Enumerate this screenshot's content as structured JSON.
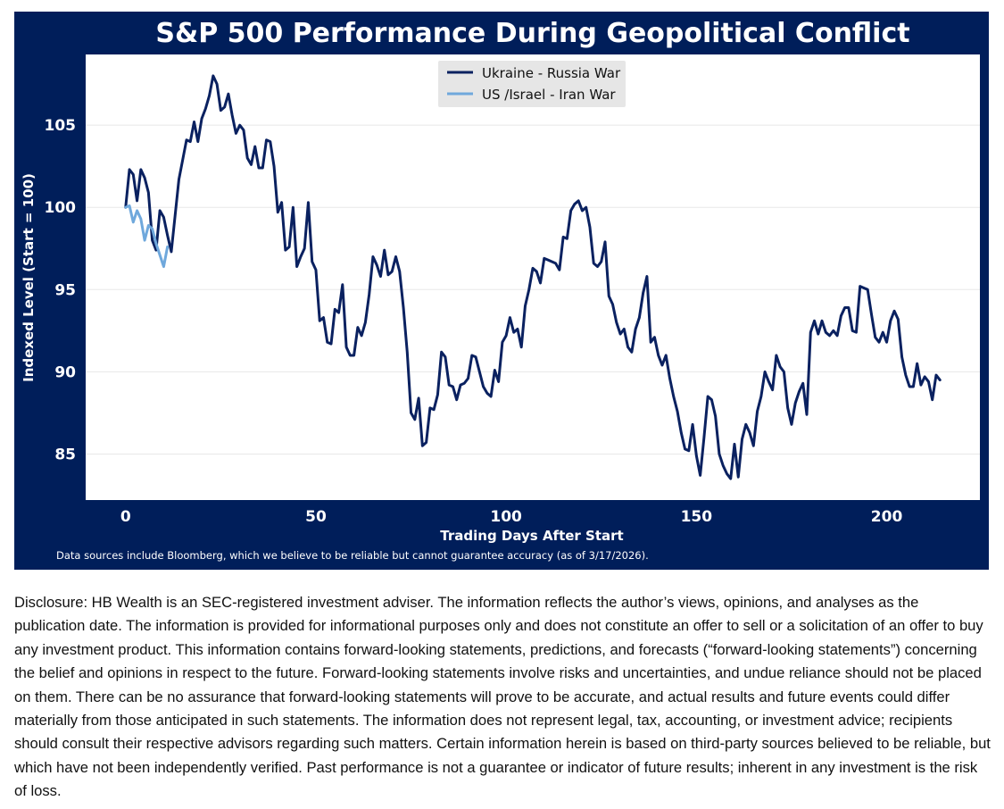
{
  "colors": {
    "panel_bg": "#001e5a",
    "plot_bg": "#ffffff",
    "series_dark": "#0a2160",
    "series_light": "#6fa8dc",
    "text_light": "#ffffff",
    "grid": "#e8e8e8"
  },
  "chart_data": {
    "type": "line",
    "title": "S&P 500 Performance During Geopolitical Conflict",
    "xlabel": "Trading Days After Start",
    "ylabel": "Indexed Level (Start = 100)",
    "xlim": [
      -10.5,
      224.5
    ],
    "ylim": [
      82.2,
      109.3
    ],
    "x_ticks": [
      0,
      50,
      100,
      150,
      200
    ],
    "y_ticks": [
      85,
      90,
      95,
      100,
      105
    ],
    "grid": "horizontal",
    "legend": "top-center",
    "series": [
      {
        "name": "Ukraine - Russia War",
        "color": "#0a2160",
        "x": [
          0,
          1,
          2,
          3,
          4,
          5,
          6,
          7,
          8,
          9,
          10,
          11,
          12,
          13,
          14,
          15,
          16,
          17,
          18,
          19,
          20,
          21,
          22,
          23,
          24,
          25,
          26,
          27,
          28,
          29,
          30,
          31,
          32,
          33,
          34,
          35,
          36,
          37,
          38,
          39,
          40,
          41,
          42,
          43,
          44,
          45,
          46,
          47,
          48,
          49,
          50,
          51,
          52,
          53,
          54,
          55,
          56,
          57,
          58,
          59,
          60,
          61,
          62,
          63,
          64,
          65,
          66,
          67,
          68,
          69,
          70,
          71,
          72,
          73,
          74,
          75,
          76,
          77,
          78,
          79,
          80,
          81,
          82,
          83,
          84,
          85,
          86,
          87,
          88,
          89,
          90,
          91,
          92,
          93,
          94,
          95,
          96,
          97,
          98,
          99,
          100,
          101,
          102,
          103,
          104,
          105,
          106,
          107,
          108,
          109,
          110,
          111,
          112,
          113,
          114,
          115,
          116,
          117,
          118,
          119,
          120,
          121,
          122,
          123,
          124,
          125,
          126,
          127,
          128,
          129,
          130,
          131,
          132,
          133,
          134,
          135,
          136,
          137,
          138,
          139,
          140,
          141,
          142,
          143,
          144,
          145,
          146,
          147,
          148,
          149,
          150,
          151,
          152,
          153,
          154,
          155,
          156,
          157,
          158,
          159,
          160,
          161,
          162,
          163,
          164,
          165,
          166,
          167,
          168,
          169,
          170,
          171,
          172,
          173,
          174,
          175,
          176,
          177,
          178,
          179,
          180,
          181,
          182,
          183,
          184,
          185,
          186,
          187,
          188,
          189,
          190,
          191,
          192,
          193,
          194,
          195,
          196,
          197,
          198,
          199,
          200,
          201,
          202,
          203,
          204,
          205,
          206,
          207,
          208,
          209,
          210,
          211,
          212,
          213,
          214
        ],
        "values": [
          100.0,
          102.3,
          102.0,
          100.4,
          102.3,
          101.8,
          100.9,
          98.0,
          97.4,
          99.8,
          99.4,
          98.3,
          97.3,
          99.5,
          101.7,
          102.9,
          104.1,
          104.0,
          105.2,
          104.0,
          105.4,
          106.0,
          106.8,
          108.0,
          107.5,
          105.9,
          106.1,
          106.9,
          105.6,
          104.5,
          105.0,
          104.7,
          103.0,
          102.6,
          103.7,
          102.4,
          102.4,
          104.1,
          104.0,
          102.5,
          99.7,
          100.3,
          97.4,
          97.6,
          100.0,
          96.4,
          97.0,
          97.5,
          100.3,
          96.7,
          96.2,
          93.1,
          93.3,
          91.8,
          91.7,
          93.8,
          93.6,
          95.3,
          91.5,
          91.0,
          91.0,
          92.7,
          92.2,
          93.0,
          94.7,
          97.0,
          96.5,
          95.8,
          97.4,
          95.9,
          96.1,
          97.0,
          96.1,
          93.9,
          91.2,
          87.5,
          87.1,
          88.4,
          85.5,
          85.7,
          87.8,
          87.7,
          88.6,
          91.2,
          90.9,
          89.2,
          89.1,
          88.3,
          89.2,
          89.3,
          89.6,
          91.0,
          90.9,
          90.0,
          89.1,
          88.7,
          88.5,
          90.1,
          89.4,
          91.8,
          92.2,
          93.3,
          92.4,
          92.6,
          91.5,
          94.0,
          95.0,
          96.3,
          96.1,
          95.4,
          96.9,
          96.8,
          96.7,
          96.6,
          96.2,
          98.2,
          98.1,
          99.8,
          100.2,
          100.4,
          99.8,
          100.0,
          98.8,
          96.6,
          96.4,
          96.7,
          97.9,
          94.6,
          94.1,
          93.0,
          92.3,
          92.6,
          91.5,
          91.2,
          92.6,
          93.3,
          94.8,
          95.8,
          91.8,
          92.1,
          91.0,
          90.4,
          91.0,
          89.6,
          88.5,
          87.6,
          86.3,
          85.3,
          85.2,
          86.8,
          84.9,
          83.7,
          86.0,
          88.5,
          88.3,
          87.3,
          85.0,
          84.3,
          83.8,
          83.5,
          85.6,
          83.6,
          85.9,
          86.8,
          86.3,
          85.5,
          87.6,
          88.5,
          90.0,
          89.4,
          88.9,
          91.0,
          90.3,
          90.0,
          87.8,
          86.8,
          88.1,
          88.8,
          89.3,
          87.4,
          92.4,
          93.1,
          92.3,
          93.1,
          92.4,
          92.2,
          92.5,
          92.2,
          93.4,
          93.9,
          93.9,
          92.5,
          92.4,
          95.2,
          95.1,
          95.0,
          93.5,
          92.1,
          91.8,
          92.4,
          91.8,
          93.1,
          93.7,
          93.2,
          90.9,
          89.8,
          89.1,
          89.1,
          90.5,
          89.2,
          89.7,
          89.4,
          88.3,
          89.8,
          89.5
        ]
      },
      {
        "name": "US /Israel - Iran War",
        "color": "#6fa8dc",
        "x": [
          0,
          1,
          2,
          3,
          4,
          5,
          6,
          7,
          8,
          9,
          10,
          11
        ],
        "values": [
          100.0,
          100.1,
          99.1,
          99.8,
          99.3,
          98.0,
          98.9,
          98.7,
          97.8,
          97.1,
          96.4,
          97.6
        ]
      }
    ]
  },
  "footnote": "Data sources include Bloomberg, which we believe to be reliable but cannot guarantee accuracy (as of 3/17/2026).",
  "disclosure": "Disclosure: HB Wealth is an SEC-registered investment adviser. The information reflects the author’s views, opinions, and analyses as the publication date. The information is provided for informational purposes only and does not constitute an offer to sell or a solicitation of an offer to buy any investment product. This information contains forward-looking statements, predictions, and forecasts (“forward-looking statements”) concerning the belief and opinions in respect to the future. Forward-looking statements involve risks and uncertainties, and undue reliance should not be placed on them. There can be no assurance that forward-looking statements will prove to be accurate, and actual results and future events could differ materially from those anticipated in such statements. The information does not represent legal, tax, accounting, or investment advice; recipients should consult their respective advisors regarding such matters. Certain information herein is based on third-party sources believed to be reliable, but which have not been independently verified. Past performance is not a guarantee or indicator of future results; inherent in any investment is the risk of loss."
}
